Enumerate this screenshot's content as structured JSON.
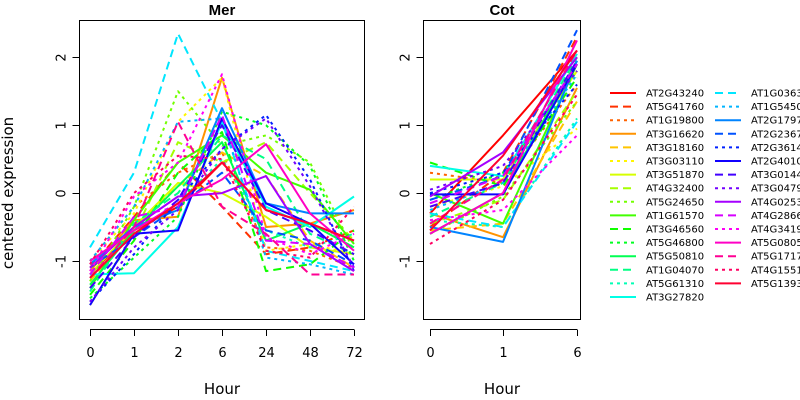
{
  "chart_data": [
    {
      "type": "line",
      "title": "Mer",
      "xlabel": "Hour",
      "ylabel": "centered expression",
      "categories": [
        "0",
        "1",
        "2",
        "6",
        "24",
        "48",
        "72"
      ],
      "yticks": [
        "-1",
        "0",
        "1",
        "2"
      ],
      "ylim": [
        -1.87,
        2.55
      ],
      "grid": false,
      "series": [
        {
          "name": "AT2G43240",
          "values": [
            -1.2,
            -0.55,
            -0.2,
            0.45,
            -0.25,
            -0.45,
            -0.7
          ]
        },
        {
          "name": "AT5G41760",
          "values": [
            -1.1,
            -0.35,
            0.45,
            -0.2,
            -0.9,
            -0.8,
            -0.55
          ]
        },
        {
          "name": "AT1G19800",
          "values": [
            -1.0,
            -0.2,
            0.3,
            0.6,
            -0.8,
            -0.85,
            -1.1
          ]
        },
        {
          "name": "AT3G16620",
          "values": [
            -1.15,
            -0.4,
            -0.35,
            1.7,
            -0.5,
            -0.45,
            -0.25
          ]
        },
        {
          "name": "AT3G18160",
          "values": [
            -1.3,
            -0.5,
            0.1,
            0.6,
            0.25,
            -0.7,
            -1.1
          ]
        },
        {
          "name": "AT3G03110",
          "values": [
            -1.0,
            -0.3,
            1.05,
            1.7,
            -0.85,
            -0.75,
            -0.9
          ]
        },
        {
          "name": "AT3G51870",
          "values": [
            -1.2,
            -0.5,
            0.15,
            0.0,
            -0.35,
            -0.8,
            -0.9
          ]
        },
        {
          "name": "AT4G32400",
          "values": [
            -1.65,
            -0.6,
            0.75,
            0.45,
            0.75,
            0.0,
            -0.7
          ]
        },
        {
          "name": "AT5G24650",
          "values": [
            -1.3,
            -0.2,
            1.5,
            0.7,
            0.85,
            0.45,
            -0.85
          ]
        },
        {
          "name": "AT1G61570",
          "values": [
            -1.4,
            -0.4,
            0.45,
            0.85,
            0.3,
            0.05,
            -0.75
          ]
        },
        {
          "name": "AT3G46560",
          "values": [
            -1.5,
            -0.7,
            0.3,
            0.9,
            -1.15,
            -1.05,
            -0.55
          ]
        },
        {
          "name": "AT5G46800",
          "values": [
            -1.55,
            -0.95,
            -0.35,
            1.2,
            1.0,
            0.4,
            -1.0
          ]
        },
        {
          "name": "AT5G50810",
          "values": [
            -1.35,
            -0.55,
            0.1,
            0.75,
            -0.7,
            -0.45,
            -0.8
          ]
        },
        {
          "name": "AT1G04070",
          "values": [
            -1.45,
            -0.45,
            0.0,
            0.85,
            0.5,
            -0.6,
            -0.9
          ]
        },
        {
          "name": "AT5G61310",
          "values": [
            -1.25,
            -0.6,
            -0.15,
            0.5,
            -0.55,
            -0.8,
            -0.6
          ]
        },
        {
          "name": "AT3G27820",
          "values": [
            -1.2,
            -1.18,
            -0.5,
            1.05,
            -0.2,
            -0.5,
            -0.05
          ]
        },
        {
          "name": "AT1G0363",
          "values": [
            -0.8,
            0.3,
            2.35,
            1.05,
            -0.85,
            -1.0,
            -1.15
          ]
        },
        {
          "name": "AT1G5450",
          "values": [
            -1.0,
            -0.2,
            1.05,
            1.1,
            -0.95,
            -1.05,
            -1.2
          ]
        },
        {
          "name": "AT2G1797",
          "values": [
            -1.05,
            -0.5,
            -0.25,
            1.25,
            -0.15,
            -0.3,
            -0.3
          ]
        },
        {
          "name": "AT2G2367",
          "values": [
            -1.1,
            -0.65,
            -0.2,
            0.3,
            -0.55,
            -0.7,
            -1.05
          ]
        },
        {
          "name": "AT2G3614",
          "values": [
            -1.6,
            -0.9,
            -0.1,
            0.65,
            1.15,
            0.2,
            -1.15
          ]
        },
        {
          "name": "AT2G4010",
          "values": [
            -1.65,
            -0.6,
            -0.55,
            1.1,
            -0.15,
            -0.45,
            -1.05
          ]
        },
        {
          "name": "AT3G0144",
          "values": [
            -1.4,
            -0.65,
            -0.1,
            1.0,
            -0.25,
            -0.55,
            -0.9
          ]
        },
        {
          "name": "AT3G0479",
          "values": [
            -1.6,
            -0.8,
            -0.25,
            0.65,
            1.1,
            0.1,
            -1.1
          ]
        },
        {
          "name": "AT4G0253",
          "values": [
            -1.1,
            -0.5,
            -0.05,
            0.0,
            0.25,
            -0.75,
            -1.15
          ]
        },
        {
          "name": "AT4G2866",
          "values": [
            -1.2,
            -0.35,
            -0.2,
            1.15,
            -0.7,
            -0.75,
            -1.1
          ]
        },
        {
          "name": "AT4G3419",
          "values": [
            -1.15,
            -0.05,
            0.45,
            1.75,
            -0.65,
            -0.9,
            -0.6
          ]
        },
        {
          "name": "AT5G0805",
          "values": [
            -1.0,
            -0.55,
            -0.15,
            0.2,
            0.72,
            -0.3,
            -0.85
          ]
        },
        {
          "name": "AT5G1717",
          "values": [
            -1.25,
            -0.5,
            1.05,
            -0.2,
            -0.6,
            -1.2,
            -1.2
          ]
        },
        {
          "name": "AT4G1551",
          "values": [
            -1.05,
            0.0,
            0.55,
            0.5,
            -0.85,
            -0.95,
            -0.2
          ]
        },
        {
          "name": "AT5G1393",
          "values": [
            -1.25,
            -0.6,
            -0.15,
            0.45,
            -0.25,
            -0.45,
            -0.7
          ]
        }
      ]
    },
    {
      "type": "line",
      "title": "Cot",
      "xlabel": "Hour",
      "ylabel": "",
      "categories": [
        "0",
        "1",
        "6"
      ],
      "yticks": [
        "-1",
        "0",
        "1",
        "2"
      ],
      "ylim": [
        -1.87,
        2.55
      ],
      "grid": false,
      "series": [
        {
          "name": "AT2G43240",
          "values": [
            -0.3,
            0.85,
            2.1
          ]
        },
        {
          "name": "AT5G41760",
          "values": [
            -0.5,
            0.3,
            2.3
          ]
        },
        {
          "name": "AT1G19800",
          "values": [
            0.3,
            0.15,
            1.6
          ]
        },
        {
          "name": "AT3G16620",
          "values": [
            -0.3,
            -0.65,
            1.55
          ]
        },
        {
          "name": "AT3G18160",
          "values": [
            -0.55,
            -0.45,
            1.35
          ]
        },
        {
          "name": "AT3G03110",
          "values": [
            -0.2,
            0.1,
            0.95
          ]
        },
        {
          "name": "AT3G51870",
          "values": [
            0.2,
            0.2,
            1.8
          ]
        },
        {
          "name": "AT4G32400",
          "values": [
            -0.45,
            -0.1,
            1.5
          ]
        },
        {
          "name": "AT5G24650",
          "values": [
            -0.6,
            -0.05,
            1.35
          ]
        },
        {
          "name": "AT1G61570",
          "values": [
            0.0,
            -0.45,
            1.9
          ]
        },
        {
          "name": "AT3G46560",
          "values": [
            0.45,
            0.1,
            1.7
          ]
        },
        {
          "name": "AT5G46800",
          "values": [
            -0.1,
            0.3,
            1.8
          ]
        },
        {
          "name": "AT5G50810",
          "values": [
            -0.6,
            0.0,
            1.95
          ]
        },
        {
          "name": "AT1G04070",
          "values": [
            -0.35,
            0.15,
            2.0
          ]
        },
        {
          "name": "AT5G61310",
          "values": [
            -0.4,
            -0.5,
            1.1
          ]
        },
        {
          "name": "AT3G27820",
          "values": [
            0.4,
            0.25,
            2.05
          ]
        },
        {
          "name": "AT1G0363",
          "values": [
            -0.3,
            -0.5,
            1.05
          ]
        },
        {
          "name": "AT1G5450",
          "values": [
            -0.25,
            0.15,
            1.75
          ]
        },
        {
          "name": "AT2G1797",
          "values": [
            -0.5,
            -0.72,
            1.95
          ]
        },
        {
          "name": "AT2G2367",
          "values": [
            -0.1,
            0.25,
            2.4
          ]
        },
        {
          "name": "AT2G3614",
          "values": [
            0.0,
            0.3,
            1.6
          ]
        },
        {
          "name": "AT2G4010",
          "values": [
            -0.02,
            -0.02,
            1.9
          ]
        },
        {
          "name": "AT3G0144",
          "values": [
            -0.2,
            0.15,
            1.95
          ]
        },
        {
          "name": "AT3G0479",
          "values": [
            0.05,
            0.4,
            1.8
          ]
        },
        {
          "name": "AT4G0253",
          "values": [
            -0.05,
            0.6,
            2.0
          ]
        },
        {
          "name": "AT4G2866",
          "values": [
            -0.15,
            0.25,
            1.9
          ]
        },
        {
          "name": "AT4G3419",
          "values": [
            -0.4,
            -0.25,
            0.85
          ]
        },
        {
          "name": "AT5G0805",
          "values": [
            -0.6,
            0.0,
            2.25
          ]
        },
        {
          "name": "AT5G1717",
          "values": [
            -0.45,
            0.2,
            2.1
          ]
        },
        {
          "name": "AT4G1551",
          "values": [
            -0.75,
            -0.1,
            1.45
          ]
        },
        {
          "name": "AT5G1393",
          "values": [
            -0.55,
            0.55,
            2.1
          ]
        }
      ]
    }
  ],
  "legend": {
    "placement": "right",
    "entries": [
      {
        "name": "AT2G43240",
        "color": "#ff0000",
        "dash": "solid"
      },
      {
        "name": "AT5G41760",
        "color": "#ff3100",
        "dash": "dashed"
      },
      {
        "name": "AT1G19800",
        "color": "#ff6200",
        "dash": "dotted"
      },
      {
        "name": "AT3G16620",
        "color": "#ff9300",
        "dash": "solid"
      },
      {
        "name": "AT3G18160",
        "color": "#ffc500",
        "dash": "dashed"
      },
      {
        "name": "AT3G03110",
        "color": "#fff600",
        "dash": "dotted"
      },
      {
        "name": "AT3G51870",
        "color": "#d6ff00",
        "dash": "solid"
      },
      {
        "name": "AT4G32400",
        "color": "#a5ff00",
        "dash": "dashed"
      },
      {
        "name": "AT5G24650",
        "color": "#73ff00",
        "dash": "dotted"
      },
      {
        "name": "AT1G61570",
        "color": "#42ff00",
        "dash": "solid"
      },
      {
        "name": "AT3G46560",
        "color": "#10ff00",
        "dash": "dashed"
      },
      {
        "name": "AT5G46800",
        "color": "#00ff21",
        "dash": "dotted"
      },
      {
        "name": "AT5G50810",
        "color": "#00ff52",
        "dash": "solid"
      },
      {
        "name": "AT1G04070",
        "color": "#00ff84",
        "dash": "dashed"
      },
      {
        "name": "AT5G61310",
        "color": "#00ffb5",
        "dash": "dotted"
      },
      {
        "name": "AT3G27820",
        "color": "#00ffe6",
        "dash": "solid"
      },
      {
        "name": "AT1G0363",
        "color": "#00e6ff",
        "dash": "dashed"
      },
      {
        "name": "AT1G5450",
        "color": "#00b5ff",
        "dash": "dotted"
      },
      {
        "name": "AT2G1797",
        "color": "#0084ff",
        "dash": "solid"
      },
      {
        "name": "AT2G2367",
        "color": "#0052ff",
        "dash": "dashed"
      },
      {
        "name": "AT2G3614",
        "color": "#0021ff",
        "dash": "dotted"
      },
      {
        "name": "AT2G4010",
        "color": "#1000ff",
        "dash": "solid"
      },
      {
        "name": "AT3G0144",
        "color": "#4200ff",
        "dash": "dashed"
      },
      {
        "name": "AT3G0479",
        "color": "#7300ff",
        "dash": "dotted"
      },
      {
        "name": "AT4G0253",
        "color": "#a500ff",
        "dash": "solid"
      },
      {
        "name": "AT4G2866",
        "color": "#d600ff",
        "dash": "dashed"
      },
      {
        "name": "AT4G3419",
        "color": "#ff00f7",
        "dash": "dotted"
      },
      {
        "name": "AT5G0805",
        "color": "#ff00c5",
        "dash": "solid"
      },
      {
        "name": "AT5G1717",
        "color": "#ff0093",
        "dash": "dashed"
      },
      {
        "name": "AT4G1551",
        "color": "#ff0062",
        "dash": "dotted"
      },
      {
        "name": "AT5G1393",
        "color": "#ff0031",
        "dash": "solid"
      }
    ]
  }
}
